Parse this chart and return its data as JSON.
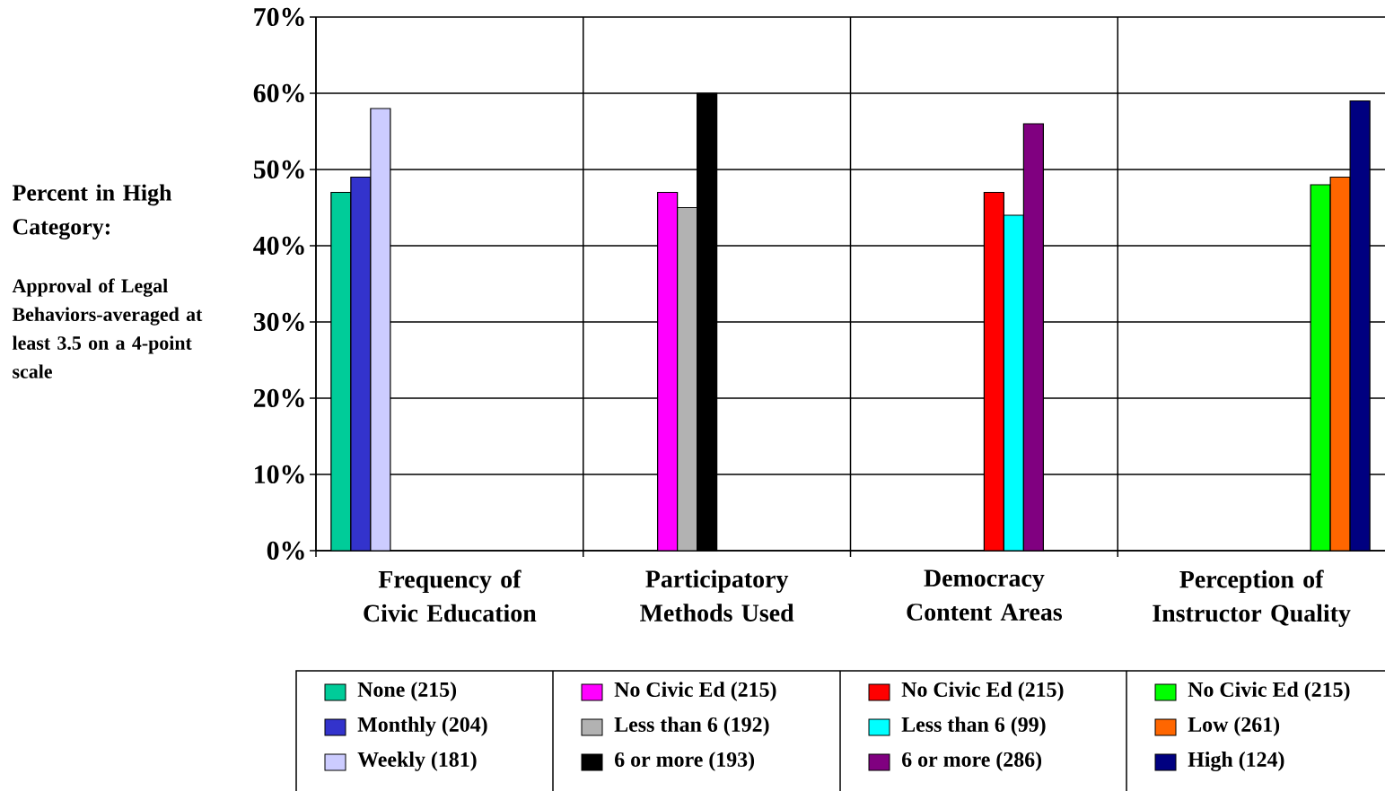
{
  "chart_data": {
    "type": "bar",
    "ylabel": "Percent in High Category:",
    "annotations": [
      "Approval of Legal Behaviors-averaged at least 3.5 on a 4-point scale"
    ],
    "categories": [
      "Frequency of Civic Education",
      "Participatory Methods Used",
      "Democracy Content Areas",
      "Perception of Instructor Quality"
    ],
    "series": [
      {
        "name": "None (215)",
        "color": "#00cc99",
        "values": [
          47,
          null,
          null,
          null
        ]
      },
      {
        "name": "Monthly (204)",
        "color": "#3333cc",
        "values": [
          49,
          null,
          null,
          null
        ]
      },
      {
        "name": "Weekly (181)",
        "color": "#ccccff",
        "values": [
          58,
          null,
          null,
          null
        ]
      },
      {
        "name": "No Civic Ed (215)",
        "color": "#ff00ff",
        "values": [
          null,
          47,
          null,
          null
        ]
      },
      {
        "name": "Less than 6 (192)",
        "color": "#b2b2b2",
        "values": [
          null,
          45,
          null,
          null
        ]
      },
      {
        "name": "6 or more (193)",
        "color": "#000000",
        "values": [
          null,
          60,
          null,
          null
        ]
      },
      {
        "name": "No Civic Ed (215)",
        "color": "#ff0000",
        "values": [
          null,
          null,
          47,
          null
        ]
      },
      {
        "name": "Less than 6 (99)",
        "color": "#00ffff",
        "values": [
          null,
          null,
          44,
          null
        ]
      },
      {
        "name": "6 or more (286)",
        "color": "#800080",
        "values": [
          null,
          null,
          56,
          null
        ]
      },
      {
        "name": "No Civic Ed (215)",
        "color": "#00ff00",
        "values": [
          null,
          null,
          null,
          48
        ]
      },
      {
        "name": "Low (261)",
        "color": "#ff6600",
        "values": [
          null,
          null,
          null,
          49
        ]
      },
      {
        "name": "High (124)",
        "color": "#000080",
        "values": [
          null,
          null,
          null,
          59
        ]
      }
    ],
    "ylim": [
      0,
      70
    ],
    "yticks": [
      {
        "value": 0,
        "label": "0%"
      },
      {
        "value": 10,
        "label": "10%"
      },
      {
        "value": 20,
        "label": "20%"
      },
      {
        "value": 30,
        "label": "30%"
      },
      {
        "value": 40,
        "label": "40%"
      },
      {
        "value": 50,
        "label": "50%"
      },
      {
        "value": 60,
        "label": "60%"
      },
      {
        "value": 70,
        "label": "70%"
      }
    ],
    "grid": true,
    "legend": "bottom"
  }
}
